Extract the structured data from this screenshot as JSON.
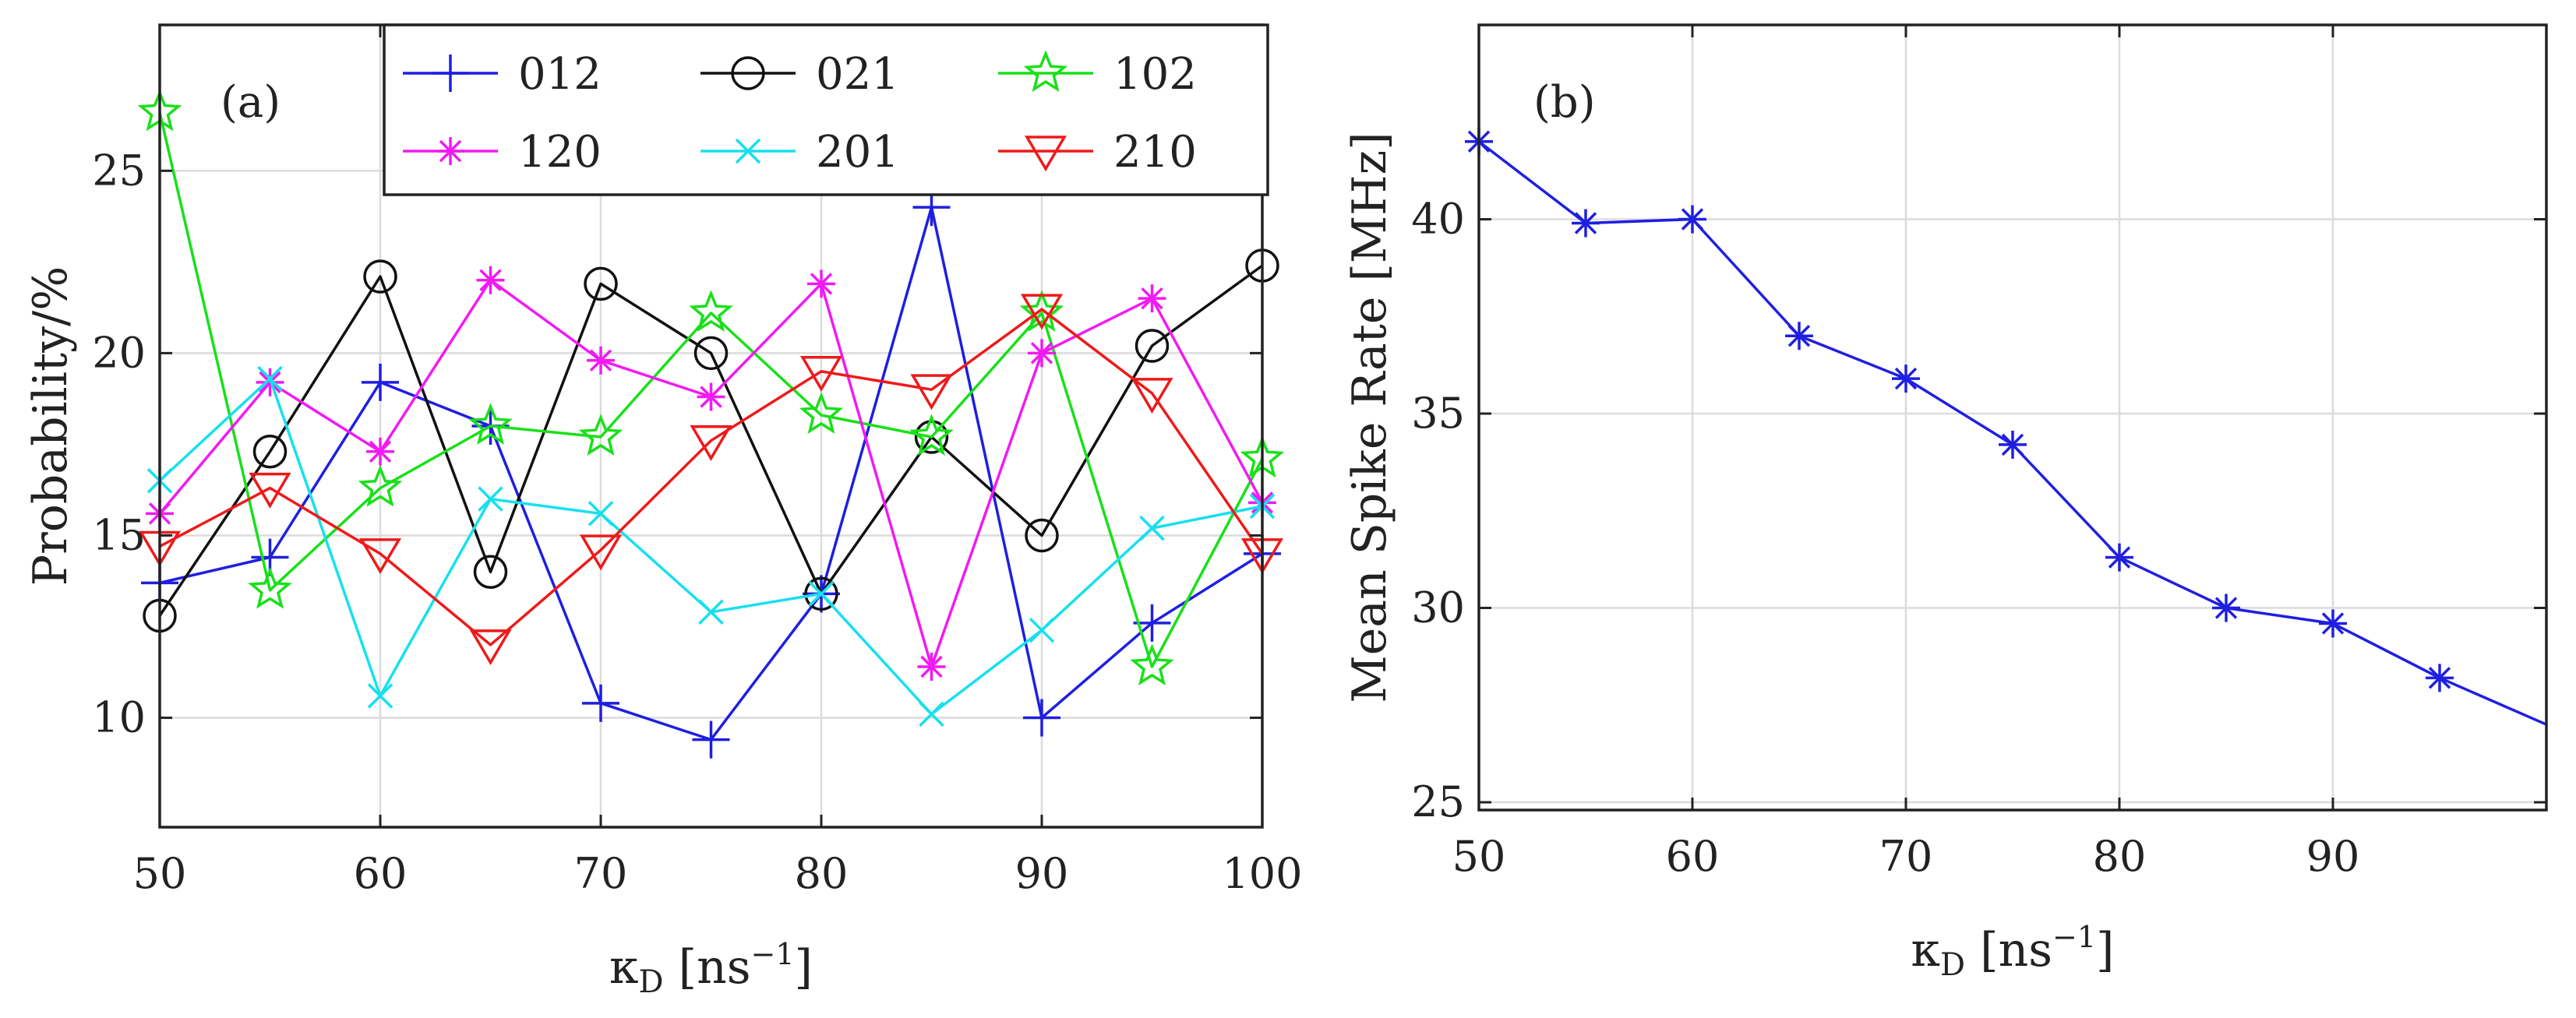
{
  "chart_data": [
    {
      "type": "line",
      "panel_label": "(a)",
      "x": [
        50,
        55,
        60,
        65,
        70,
        75,
        80,
        85,
        90,
        95,
        100
      ],
      "xlim": [
        50,
        100
      ],
      "ylim": [
        7,
        29
      ],
      "xticks": [
        "50",
        "60",
        "70",
        "80",
        "90",
        "100"
      ],
      "xtick_values": [
        50,
        60,
        70,
        80,
        90,
        100
      ],
      "yticks": [
        "10",
        "15",
        "20",
        "25"
      ],
      "ytick_values": [
        10,
        15,
        20,
        25
      ],
      "ylabel": "Probability/%",
      "xlabel": {
        "symbol": "κ",
        "sub": "D",
        "unit": "[ns",
        "sup": "−1",
        "close": "]"
      },
      "grid": true,
      "legend_placement": "top-center",
      "series": [
        {
          "name": "012",
          "color": "#1f1fe0",
          "marker": "plus",
          "values": [
            13.7,
            14.4,
            19.2,
            18.0,
            10.4,
            9.4,
            13.4,
            24.0,
            10.0,
            12.6,
            14.5
          ]
        },
        {
          "name": "021",
          "color": "#111111",
          "marker": "circle",
          "values": [
            12.8,
            17.3,
            22.1,
            14.0,
            21.9,
            20.0,
            13.4,
            17.7,
            15.0,
            20.2,
            22.4
          ]
        },
        {
          "name": "102",
          "color": "#19e019",
          "marker": "star",
          "values": [
            26.6,
            13.5,
            16.3,
            18.0,
            17.7,
            21.1,
            18.3,
            17.7,
            21.1,
            11.4,
            17.1
          ]
        },
        {
          "name": "120",
          "color": "#f21af2",
          "marker": "asterisk",
          "values": [
            15.6,
            19.2,
            17.3,
            22.0,
            19.8,
            18.8,
            21.9,
            11.4,
            20.0,
            21.5,
            15.9
          ]
        },
        {
          "name": "201",
          "color": "#16e0ee",
          "marker": "x",
          "values": [
            16.5,
            19.3,
            10.6,
            16.0,
            15.6,
            12.9,
            13.4,
            10.1,
            12.4,
            15.2,
            15.8
          ]
        },
        {
          "name": "210",
          "color": "#ee1a1a",
          "marker": "triangle",
          "values": [
            14.7,
            16.3,
            14.5,
            12.0,
            14.6,
            17.6,
            19.5,
            19.0,
            21.2,
            18.9,
            14.5
          ]
        }
      ]
    },
    {
      "type": "line",
      "panel_label": "(b)",
      "x": [
        50,
        55,
        60,
        65,
        70,
        75,
        80,
        85,
        90,
        95
      ],
      "xlim": [
        50,
        100
      ],
      "ylim": [
        24.8,
        45
      ],
      "xticks": [
        "50",
        "60",
        "70",
        "80",
        "90"
      ],
      "xtick_values": [
        50,
        60,
        70,
        80,
        90
      ],
      "grid_x": [
        50,
        60,
        70,
        80,
        90
      ],
      "yticks": [
        "25",
        "30",
        "35",
        "40"
      ],
      "ytick_values": [
        25,
        30,
        35,
        40
      ],
      "ylabel": "Mean Spike Rate [MHz]",
      "xlabel": {
        "symbol": "κ",
        "sub": "D",
        "unit": "[ns",
        "sup": "−1",
        "close": "]"
      },
      "grid": true,
      "series": [
        {
          "name": "",
          "color": "#1f1fe0",
          "marker": "asterisk",
          "values": [
            42.0,
            39.9,
            40.0,
            37.0,
            35.9,
            34.2,
            31.3,
            30.0,
            29.6,
            28.2
          ],
          "line_end": {
            "x": 100,
            "y": 27.0
          }
        }
      ]
    }
  ]
}
